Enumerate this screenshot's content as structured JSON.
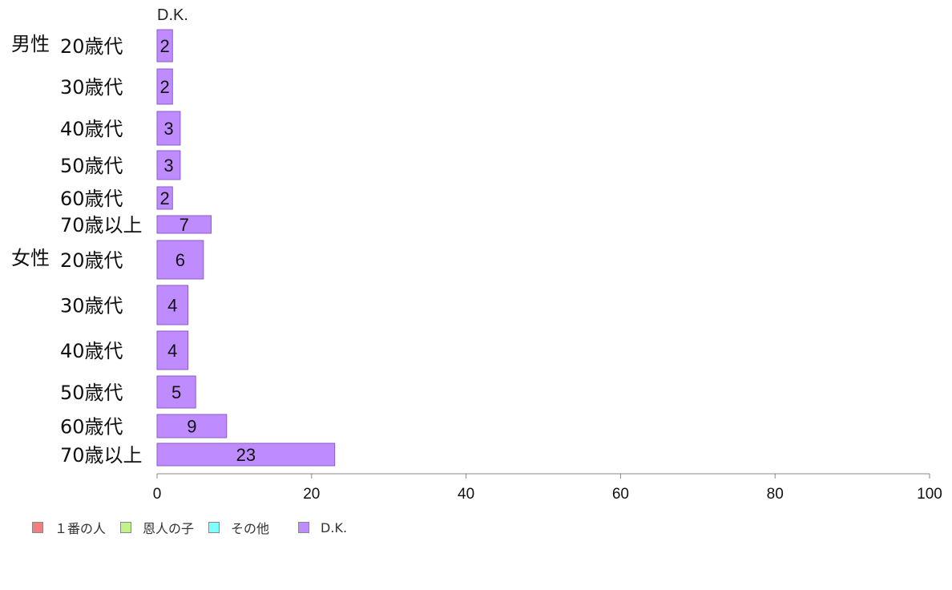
{
  "chart_data": {
    "type": "bar",
    "orientation": "horizontal",
    "series_header": "D.K.",
    "groups": [
      {
        "label": "男性",
        "start_index": 0
      },
      {
        "label": "女性",
        "start_index": 6
      }
    ],
    "categories": [
      "20歳代",
      "30歳代",
      "40歳代",
      "50歳代",
      "60歳代",
      "70歳以上",
      "20歳代",
      "30歳代",
      "40歳代",
      "50歳代",
      "60歳代",
      "70歳以上"
    ],
    "series": [
      {
        "name": "D.K.",
        "values": [
          2,
          2,
          3,
          3,
          2,
          7,
          6,
          4,
          4,
          5,
          9,
          23
        ]
      }
    ],
    "xlim": [
      0,
      100
    ],
    "xticks": [
      0,
      20,
      40,
      60,
      80,
      100
    ],
    "grid": false,
    "legend_position": "bottom-left",
    "legend": [
      {
        "label": "１番の人",
        "color": "#f08080"
      },
      {
        "label": "恩人の子",
        "color": "#c2f28a"
      },
      {
        "label": "その他",
        "color": "#80ffff"
      },
      {
        "label": "D.K.",
        "color": "#bf8cff"
      }
    ],
    "bar_color": "#bf8cff",
    "bar_border": "#8a5cc8"
  }
}
